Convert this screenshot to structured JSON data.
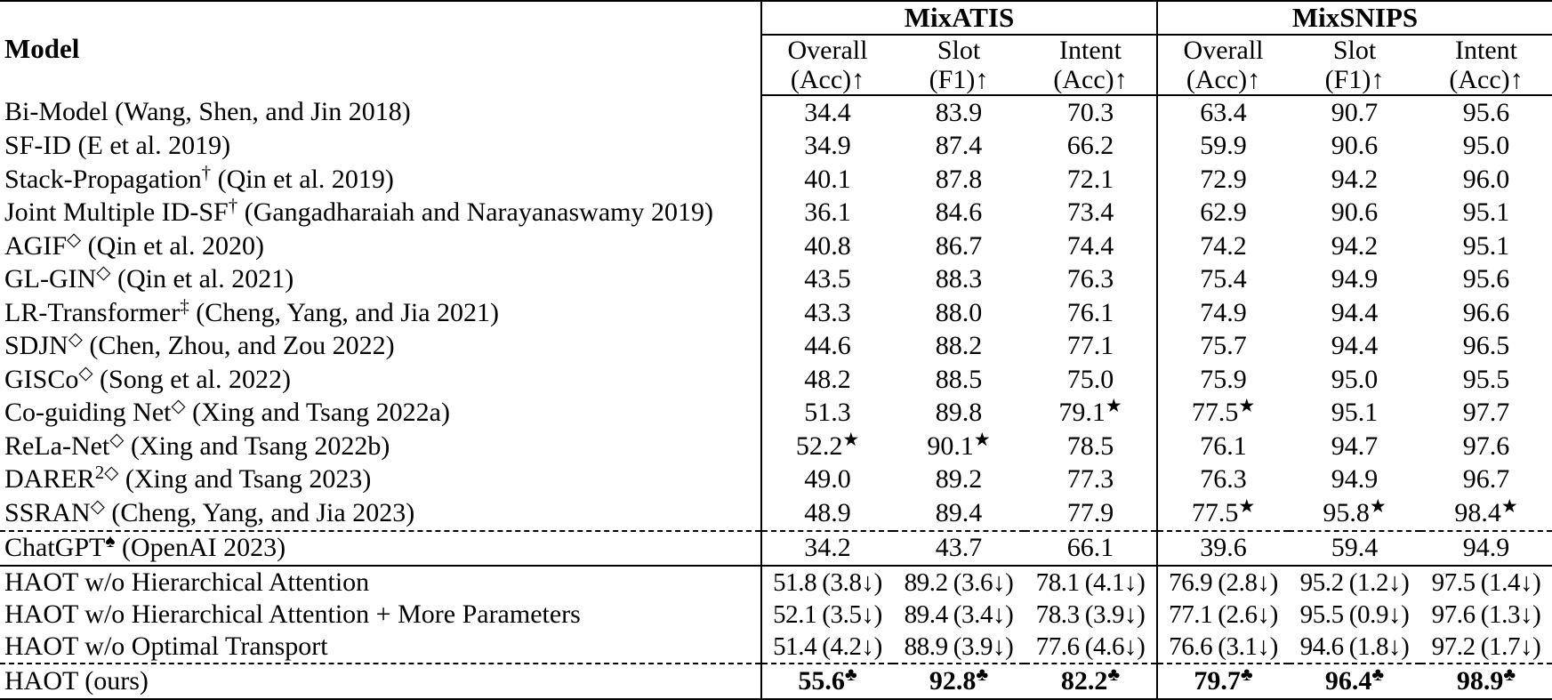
{
  "table": {
    "model_header": "Model",
    "groups": [
      {
        "label": "MixATIS",
        "columns": [
          {
            "l1": "Overall",
            "l2": "(Acc)↑"
          },
          {
            "l1": "Slot",
            "l2": "(F1)↑"
          },
          {
            "l1": "Intent",
            "l2": "(Acc)↑"
          }
        ]
      },
      {
        "label": "MixSNIPS",
        "columns": [
          {
            "l1": "Overall",
            "l2": "(Acc)↑"
          },
          {
            "l1": "Slot",
            "l2": "(F1)↑"
          },
          {
            "l1": "Intent",
            "l2": "(Acc)↑"
          }
        ]
      }
    ],
    "rows": [
      {
        "m": "Bi-Model",
        "mrest": " (Wang, Shen, and Jin 2018)",
        "cells": [
          {
            "v": "34.4"
          },
          {
            "v": "83.9"
          },
          {
            "v": "70.3"
          },
          {
            "v": "63.4"
          },
          {
            "v": "90.7"
          },
          {
            "v": "95.6"
          }
        ]
      },
      {
        "m": "SF-ID",
        "mrest": " (E et al. 2019)",
        "cells": [
          {
            "v": "34.9"
          },
          {
            "v": "87.4"
          },
          {
            "v": "66.2"
          },
          {
            "v": "59.9"
          },
          {
            "v": "90.6"
          },
          {
            "v": "95.0"
          }
        ]
      },
      {
        "m": "Stack-Propagation",
        "msup": "†",
        "mrest": " (Qin et al. 2019)",
        "cells": [
          {
            "v": "40.1"
          },
          {
            "v": "87.8"
          },
          {
            "v": "72.1"
          },
          {
            "v": "72.9"
          },
          {
            "v": "94.2"
          },
          {
            "v": "96.0"
          }
        ]
      },
      {
        "m": "Joint Multiple ID-SF",
        "msup": "†",
        "mrest": " (Gangadharaiah and Narayanaswamy 2019)",
        "cells": [
          {
            "v": "36.1"
          },
          {
            "v": "84.6"
          },
          {
            "v": "73.4"
          },
          {
            "v": "62.9"
          },
          {
            "v": "90.6"
          },
          {
            "v": "95.1"
          }
        ]
      },
      {
        "m": "AGIF",
        "msup": "◇",
        "mrest": " (Qin et al. 2020)",
        "cells": [
          {
            "v": "40.8"
          },
          {
            "v": "86.7"
          },
          {
            "v": "74.4"
          },
          {
            "v": "74.2"
          },
          {
            "v": "94.2"
          },
          {
            "v": "95.1"
          }
        ]
      },
      {
        "m": "GL-GIN",
        "msup": "◇",
        "mrest": " (Qin et al. 2021)",
        "cells": [
          {
            "v": "43.5"
          },
          {
            "v": "88.3"
          },
          {
            "v": "76.3"
          },
          {
            "v": "75.4"
          },
          {
            "v": "94.9"
          },
          {
            "v": "95.6"
          }
        ]
      },
      {
        "m": "LR-Transformer",
        "msup": "‡",
        "mrest": " (Cheng, Yang, and Jia 2021)",
        "cells": [
          {
            "v": "43.3"
          },
          {
            "v": "88.0"
          },
          {
            "v": "76.1"
          },
          {
            "v": "74.9"
          },
          {
            "v": "94.4"
          },
          {
            "v": "96.6"
          }
        ]
      },
      {
        "m": "SDJN",
        "msup": "◇",
        "mrest": " (Chen, Zhou, and Zou 2022)",
        "cells": [
          {
            "v": "44.6"
          },
          {
            "v": "88.2"
          },
          {
            "v": "77.1"
          },
          {
            "v": "75.7"
          },
          {
            "v": "94.4"
          },
          {
            "v": "96.5"
          }
        ]
      },
      {
        "m": "GISCo",
        "msup": "◇",
        "mrest": " (Song et al. 2022)",
        "cells": [
          {
            "v": "48.2"
          },
          {
            "v": "88.5"
          },
          {
            "v": "75.0"
          },
          {
            "v": "75.9"
          },
          {
            "v": "95.0"
          },
          {
            "v": "95.5"
          }
        ]
      },
      {
        "m": "Co-guiding Net",
        "msup": "◇",
        "mrest": " (Xing and Tsang 2022a)",
        "cells": [
          {
            "v": "51.3"
          },
          {
            "v": "89.8"
          },
          {
            "v": "79.1",
            "sup": "★"
          },
          {
            "v": "77.5",
            "sup": "★"
          },
          {
            "v": "95.1"
          },
          {
            "v": "97.7"
          }
        ]
      },
      {
        "m": "ReLa-Net",
        "msup": "◇",
        "mrest": " (Xing and Tsang 2022b)",
        "cells": [
          {
            "v": "52.2",
            "sup": "★"
          },
          {
            "v": "90.1",
            "sup": "★"
          },
          {
            "v": "78.5"
          },
          {
            "v": "76.1"
          },
          {
            "v": "94.7"
          },
          {
            "v": "97.6"
          }
        ]
      },
      {
        "m": "DARER",
        "msup": "2◇",
        "mrest": " (Xing and Tsang 2023)",
        "cells": [
          {
            "v": "49.0"
          },
          {
            "v": "89.2"
          },
          {
            "v": "77.3"
          },
          {
            "v": "76.3"
          },
          {
            "v": "94.9"
          },
          {
            "v": "96.7"
          }
        ]
      },
      {
        "m": "SSRAN",
        "msup": "◇",
        "mrest": " (Cheng, Yang, and Jia 2023)",
        "cells": [
          {
            "v": "48.9"
          },
          {
            "v": "89.4"
          },
          {
            "v": "77.9"
          },
          {
            "v": "77.5",
            "sup": "★"
          },
          {
            "v": "95.8",
            "sup": "★"
          },
          {
            "v": "98.4",
            "sup": "★"
          }
        ]
      },
      {
        "border": "dashed",
        "m": "ChatGPT",
        "msup": "♠",
        "mrest": " (OpenAI 2023)",
        "cells": [
          {
            "v": "34.2"
          },
          {
            "v": "43.7"
          },
          {
            "v": "66.1"
          },
          {
            "v": "39.6"
          },
          {
            "v": "59.4"
          },
          {
            "v": "94.9"
          }
        ]
      },
      {
        "border": "solid",
        "rowClass": "ablation",
        "m": "HAOT w/o Hierarchical Attention",
        "cells": [
          {
            "v": "51.8",
            "drop": "(3.8↓)"
          },
          {
            "v": "89.2",
            "drop": "(3.6↓)"
          },
          {
            "v": "78.1",
            "drop": "(4.1↓)"
          },
          {
            "v": "76.9",
            "drop": "(2.8↓)"
          },
          {
            "v": "95.2",
            "drop": "(1.2↓)"
          },
          {
            "v": "97.5",
            "drop": "(1.4↓)"
          }
        ]
      },
      {
        "rowClass": "ablation",
        "m": "HAOT w/o Hierarchical Attention + More Parameters",
        "cells": [
          {
            "v": "52.1",
            "drop": "(3.5↓)"
          },
          {
            "v": "89.4",
            "drop": "(3.4↓)"
          },
          {
            "v": "78.3",
            "drop": "(3.9↓)"
          },
          {
            "v": "77.1",
            "drop": "(2.6↓)"
          },
          {
            "v": "95.5",
            "drop": "(0.9↓)"
          },
          {
            "v": "97.6",
            "drop": "(1.3↓)"
          }
        ]
      },
      {
        "rowClass": "ablation",
        "m": "HAOT w/o Optimal Transport",
        "cells": [
          {
            "v": "51.4",
            "drop": "(4.2↓)"
          },
          {
            "v": "88.9",
            "drop": "(3.9↓)"
          },
          {
            "v": "77.6",
            "drop": "(4.6↓)"
          },
          {
            "v": "76.6",
            "drop": "(3.1↓)"
          },
          {
            "v": "94.6",
            "drop": "(1.8↓)"
          },
          {
            "v": "97.2",
            "drop": "(1.7↓)"
          }
        ]
      },
      {
        "border": "dashed",
        "m": "HAOT (ours)",
        "cells": [
          {
            "v": "55.6",
            "sup": "♣",
            "bold": true
          },
          {
            "v": "92.8",
            "sup": "♣",
            "bold": true
          },
          {
            "v": "82.2",
            "sup": "♣",
            "bold": true
          },
          {
            "v": "79.7",
            "sup": "♣",
            "bold": true
          },
          {
            "v": "96.4",
            "sup": "♣",
            "bold": true
          },
          {
            "v": "98.9",
            "sup": "♣",
            "bold": true
          }
        ]
      }
    ],
    "colors": {
      "text": "#000000",
      "background": "#ffffff",
      "rule": "#000000"
    }
  }
}
